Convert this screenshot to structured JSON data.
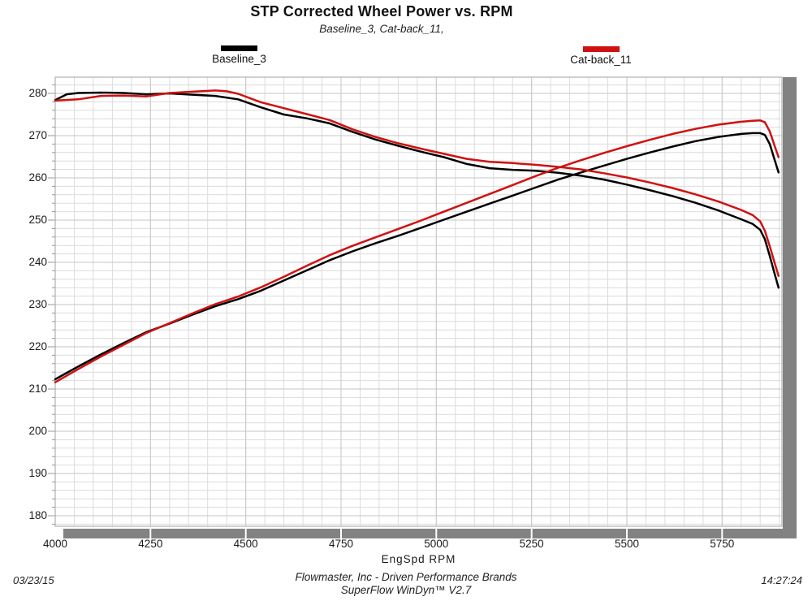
{
  "header": {
    "title": "STP Corrected Wheel Power vs. RPM",
    "subtitle": "Baseline_3, Cat-back_11,"
  },
  "legend": {
    "items": [
      {
        "label": "Baseline_3",
        "color": "#000000"
      },
      {
        "label": "Cat-back_11",
        "color": "#d01111"
      }
    ]
  },
  "footer": {
    "brand_line": "Flowmaster, Inc - Driven Performance Brands",
    "software_line": "SuperFlow WinDyn™ V2.7",
    "date": "03/23/15",
    "time": "14:27:24"
  },
  "colors": {
    "baseline": "#000000",
    "catback": "#d01111",
    "grid_minor": "#dcdcdc",
    "grid_major": "#c6c6c6",
    "frame": "#b0b0b0",
    "shadow": "#828282",
    "tick": "#999999"
  },
  "chart_data": {
    "type": "line",
    "title": "STP Corrected Wheel Power vs. RPM",
    "xlabel": "EngSpd  RPM",
    "ylabel": "",
    "xlim": [
      4000,
      5907
    ],
    "ylim": [
      177.5,
      283.85
    ],
    "x_ticks": [
      4000,
      4250,
      4500,
      4750,
      5000,
      5250,
      5500,
      5750
    ],
    "y_ticks": [
      180,
      190,
      200,
      210,
      220,
      230,
      240,
      250,
      260,
      270,
      280
    ],
    "grid": {
      "minor_x_step": 50,
      "minor_y_step": 2,
      "major_x_step": 250,
      "major_y_step": 10
    },
    "legend_position": "top",
    "series": [
      {
        "name": "Baseline_3 torque",
        "run": "Baseline_3",
        "color": "#000000",
        "points": [
          [
            4000,
            278.4
          ],
          [
            4030,
            279.8
          ],
          [
            4060,
            280.1
          ],
          [
            4120,
            280.2
          ],
          [
            4180,
            280.1
          ],
          [
            4240,
            279.8
          ],
          [
            4300,
            280.0
          ],
          [
            4360,
            279.7
          ],
          [
            4420,
            279.4
          ],
          [
            4480,
            278.6
          ],
          [
            4540,
            276.7
          ],
          [
            4600,
            275.0
          ],
          [
            4660,
            274.1
          ],
          [
            4720,
            272.9
          ],
          [
            4780,
            270.9
          ],
          [
            4840,
            269.1
          ],
          [
            4900,
            267.6
          ],
          [
            4960,
            266.2
          ],
          [
            5020,
            264.9
          ],
          [
            5080,
            263.3
          ],
          [
            5140,
            262.3
          ],
          [
            5200,
            261.9
          ],
          [
            5260,
            261.7
          ],
          [
            5320,
            261.2
          ],
          [
            5380,
            260.5
          ],
          [
            5440,
            259.6
          ],
          [
            5500,
            258.4
          ],
          [
            5560,
            257.1
          ],
          [
            5620,
            255.7
          ],
          [
            5680,
            254.1
          ],
          [
            5740,
            252.3
          ],
          [
            5800,
            250.2
          ],
          [
            5830,
            249.1
          ],
          [
            5850,
            247.7
          ],
          [
            5862,
            245.5
          ],
          [
            5875,
            241.5
          ],
          [
            5888,
            237.2
          ],
          [
            5898,
            234.0
          ]
        ]
      },
      {
        "name": "Baseline_3 power",
        "run": "Baseline_3",
        "color": "#000000",
        "points": [
          [
            4000,
            212.3
          ],
          [
            4060,
            215.3
          ],
          [
            4120,
            218.2
          ],
          [
            4180,
            220.9
          ],
          [
            4240,
            223.5
          ],
          [
            4300,
            225.5
          ],
          [
            4360,
            227.6
          ],
          [
            4420,
            229.6
          ],
          [
            4480,
            231.3
          ],
          [
            4540,
            233.3
          ],
          [
            4600,
            235.7
          ],
          [
            4660,
            238.1
          ],
          [
            4720,
            240.5
          ],
          [
            4780,
            242.6
          ],
          [
            4840,
            244.5
          ],
          [
            4900,
            246.3
          ],
          [
            4960,
            248.2
          ],
          [
            5020,
            250.1
          ],
          [
            5080,
            252.0
          ],
          [
            5140,
            253.9
          ],
          [
            5200,
            255.8
          ],
          [
            5260,
            257.7
          ],
          [
            5320,
            259.6
          ],
          [
            5380,
            261.3
          ],
          [
            5440,
            262.9
          ],
          [
            5500,
            264.5
          ],
          [
            5560,
            266.0
          ],
          [
            5620,
            267.4
          ],
          [
            5680,
            268.7
          ],
          [
            5740,
            269.7
          ],
          [
            5800,
            270.4
          ],
          [
            5830,
            270.6
          ],
          [
            5850,
            270.6
          ],
          [
            5862,
            270.2
          ],
          [
            5875,
            268.0
          ],
          [
            5888,
            264.2
          ],
          [
            5898,
            261.3
          ]
        ]
      },
      {
        "name": "Cat-back_11 torque",
        "run": "Cat-back_11",
        "color": "#d01111",
        "points": [
          [
            4000,
            278.3
          ],
          [
            4060,
            278.6
          ],
          [
            4120,
            279.4
          ],
          [
            4180,
            279.5
          ],
          [
            4240,
            279.3
          ],
          [
            4300,
            280.1
          ],
          [
            4360,
            280.4
          ],
          [
            4420,
            280.7
          ],
          [
            4450,
            280.5
          ],
          [
            4480,
            279.9
          ],
          [
            4540,
            277.9
          ],
          [
            4600,
            276.5
          ],
          [
            4660,
            275.1
          ],
          [
            4720,
            273.7
          ],
          [
            4780,
            271.5
          ],
          [
            4840,
            269.7
          ],
          [
            4900,
            268.2
          ],
          [
            4960,
            266.9
          ],
          [
            5020,
            265.7
          ],
          [
            5080,
            264.5
          ],
          [
            5140,
            263.8
          ],
          [
            5200,
            263.5
          ],
          [
            5260,
            263.1
          ],
          [
            5320,
            262.6
          ],
          [
            5380,
            262.0
          ],
          [
            5440,
            261.1
          ],
          [
            5500,
            260.1
          ],
          [
            5560,
            258.9
          ],
          [
            5620,
            257.6
          ],
          [
            5680,
            256.1
          ],
          [
            5740,
            254.4
          ],
          [
            5800,
            252.4
          ],
          [
            5830,
            251.2
          ],
          [
            5850,
            249.7
          ],
          [
            5862,
            247.5
          ],
          [
            5875,
            243.8
          ],
          [
            5888,
            239.8
          ],
          [
            5898,
            236.8
          ]
        ]
      },
      {
        "name": "Cat-back_11 power",
        "run": "Cat-back_11",
        "color": "#d01111",
        "points": [
          [
            4000,
            211.6
          ],
          [
            4060,
            214.7
          ],
          [
            4120,
            217.7
          ],
          [
            4180,
            220.5
          ],
          [
            4240,
            223.3
          ],
          [
            4300,
            225.6
          ],
          [
            4360,
            227.9
          ],
          [
            4420,
            230.1
          ],
          [
            4480,
            231.9
          ],
          [
            4540,
            234.1
          ],
          [
            4600,
            236.6
          ],
          [
            4660,
            239.2
          ],
          [
            4720,
            241.7
          ],
          [
            4780,
            243.9
          ],
          [
            4840,
            245.9
          ],
          [
            4900,
            247.9
          ],
          [
            4960,
            249.9
          ],
          [
            5020,
            252.0
          ],
          [
            5080,
            254.1
          ],
          [
            5140,
            256.2
          ],
          [
            5200,
            258.3
          ],
          [
            5260,
            260.4
          ],
          [
            5320,
            262.4
          ],
          [
            5380,
            264.2
          ],
          [
            5440,
            265.9
          ],
          [
            5500,
            267.5
          ],
          [
            5560,
            269.0
          ],
          [
            5620,
            270.4
          ],
          [
            5680,
            271.6
          ],
          [
            5740,
            272.6
          ],
          [
            5800,
            273.3
          ],
          [
            5830,
            273.5
          ],
          [
            5850,
            273.6
          ],
          [
            5862,
            273.2
          ],
          [
            5875,
            271.0
          ],
          [
            5888,
            267.5
          ],
          [
            5898,
            264.9
          ]
        ]
      }
    ]
  }
}
